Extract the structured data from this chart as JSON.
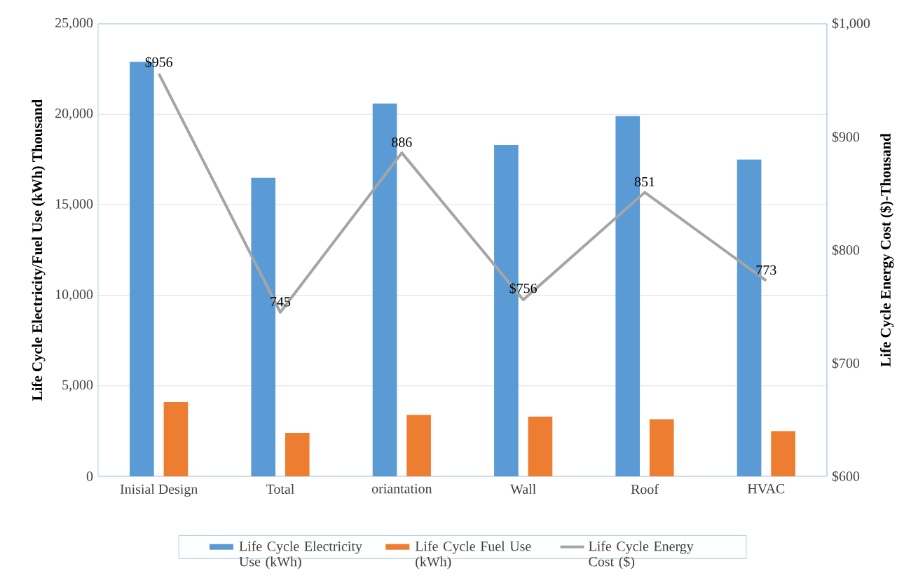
{
  "chart_data": {
    "type": "bar",
    "ylabel": "Life Cycle Electricity/Fuel Use (kWh) Thousand",
    "y2label": "Life Cycle Energy Cost ($)-Thousand",
    "categories": [
      "Inisial Design",
      "Total",
      "oriantation",
      "Wall",
      "Roof",
      "HVAC"
    ],
    "series": [
      {
        "name": "Life Cycle Electricity Use (kWh)",
        "color": "#5b9bd5",
        "values": [
          22900,
          16500,
          20600,
          18300,
          19900,
          17500
        ]
      },
      {
        "name": "Life Cycle Fuel Use (kWh)",
        "color": "#ed7d31",
        "values": [
          4100,
          2400,
          3400,
          3300,
          3150,
          2500
        ]
      },
      {
        "name": "Life Cycle Energy Cost ($)",
        "type": "line",
        "axis": "y2",
        "color": "#a5a5a5",
        "values": [
          956,
          745,
          886,
          756,
          851,
          773
        ],
        "value_labels": [
          "$956",
          "745",
          "886",
          "$756",
          "851",
          "773"
        ]
      }
    ],
    "ylim": [
      0,
      25000
    ],
    "yticks": [
      0,
      {
        "value": 5000,
        "label": "5,000"
      },
      {
        "value": 10000,
        "label": "10,000"
      },
      {
        "value": 15000,
        "label": "15,000"
      },
      {
        "value": 20000,
        "label": "20,000"
      },
      {
        "value": 25000,
        "label": "25,000"
      }
    ],
    "y2lim": [
      600,
      1000
    ],
    "y2ticks": [
      {
        "value": 600,
        "label": "$600"
      },
      {
        "value": 700,
        "label": "$700"
      },
      {
        "value": 800,
        "label": "$800"
      },
      {
        "value": 900,
        "label": "$900"
      },
      {
        "value": 1000,
        "label": "$1,000"
      }
    ],
    "grid": "y",
    "legend": "bottom",
    "marker": "none"
  }
}
